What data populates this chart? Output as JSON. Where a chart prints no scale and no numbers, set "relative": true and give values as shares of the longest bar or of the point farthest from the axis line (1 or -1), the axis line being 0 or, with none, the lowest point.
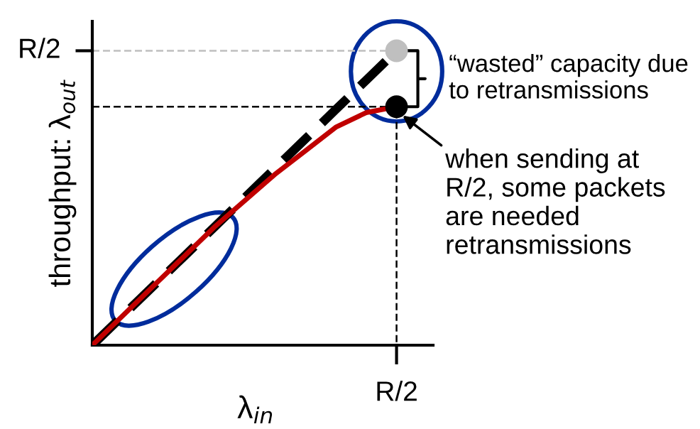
{
  "chart_data": {
    "type": "line",
    "relative": true,
    "xlabel": "λ$_{in}$",
    "ylabel": "throughput: λ$_{out}$",
    "grid": false,
    "legend": false,
    "categories": [
      null,
      null,
      null,
      null,
      null,
      null,
      null,
      null,
      null,
      null,
      null
    ],
    "series": [
      {
        "color": "#000000",
        "line_style": "dashed",
        "values": [
          0,
          0.1,
          0.2,
          0.3,
          0.4,
          0.5,
          0.6,
          0.7,
          0.8,
          0.9,
          1
        ]
      },
      {
        "color": "#c00000",
        "line_style": "solid",
        "values": [
          0,
          0.1,
          0.2,
          0.3,
          0.4,
          0.49,
          0.58,
          0.66,
          0.74,
          0.79,
          0.81
        ]
      }
    ],
    "annotations": [
      "R/2",
      "R/2",
      "“wasted” capacity due\nto retransmissions",
      "when sending at\nR/2, some packets\nare needed\nretransmissions"
    ]
  }
}
